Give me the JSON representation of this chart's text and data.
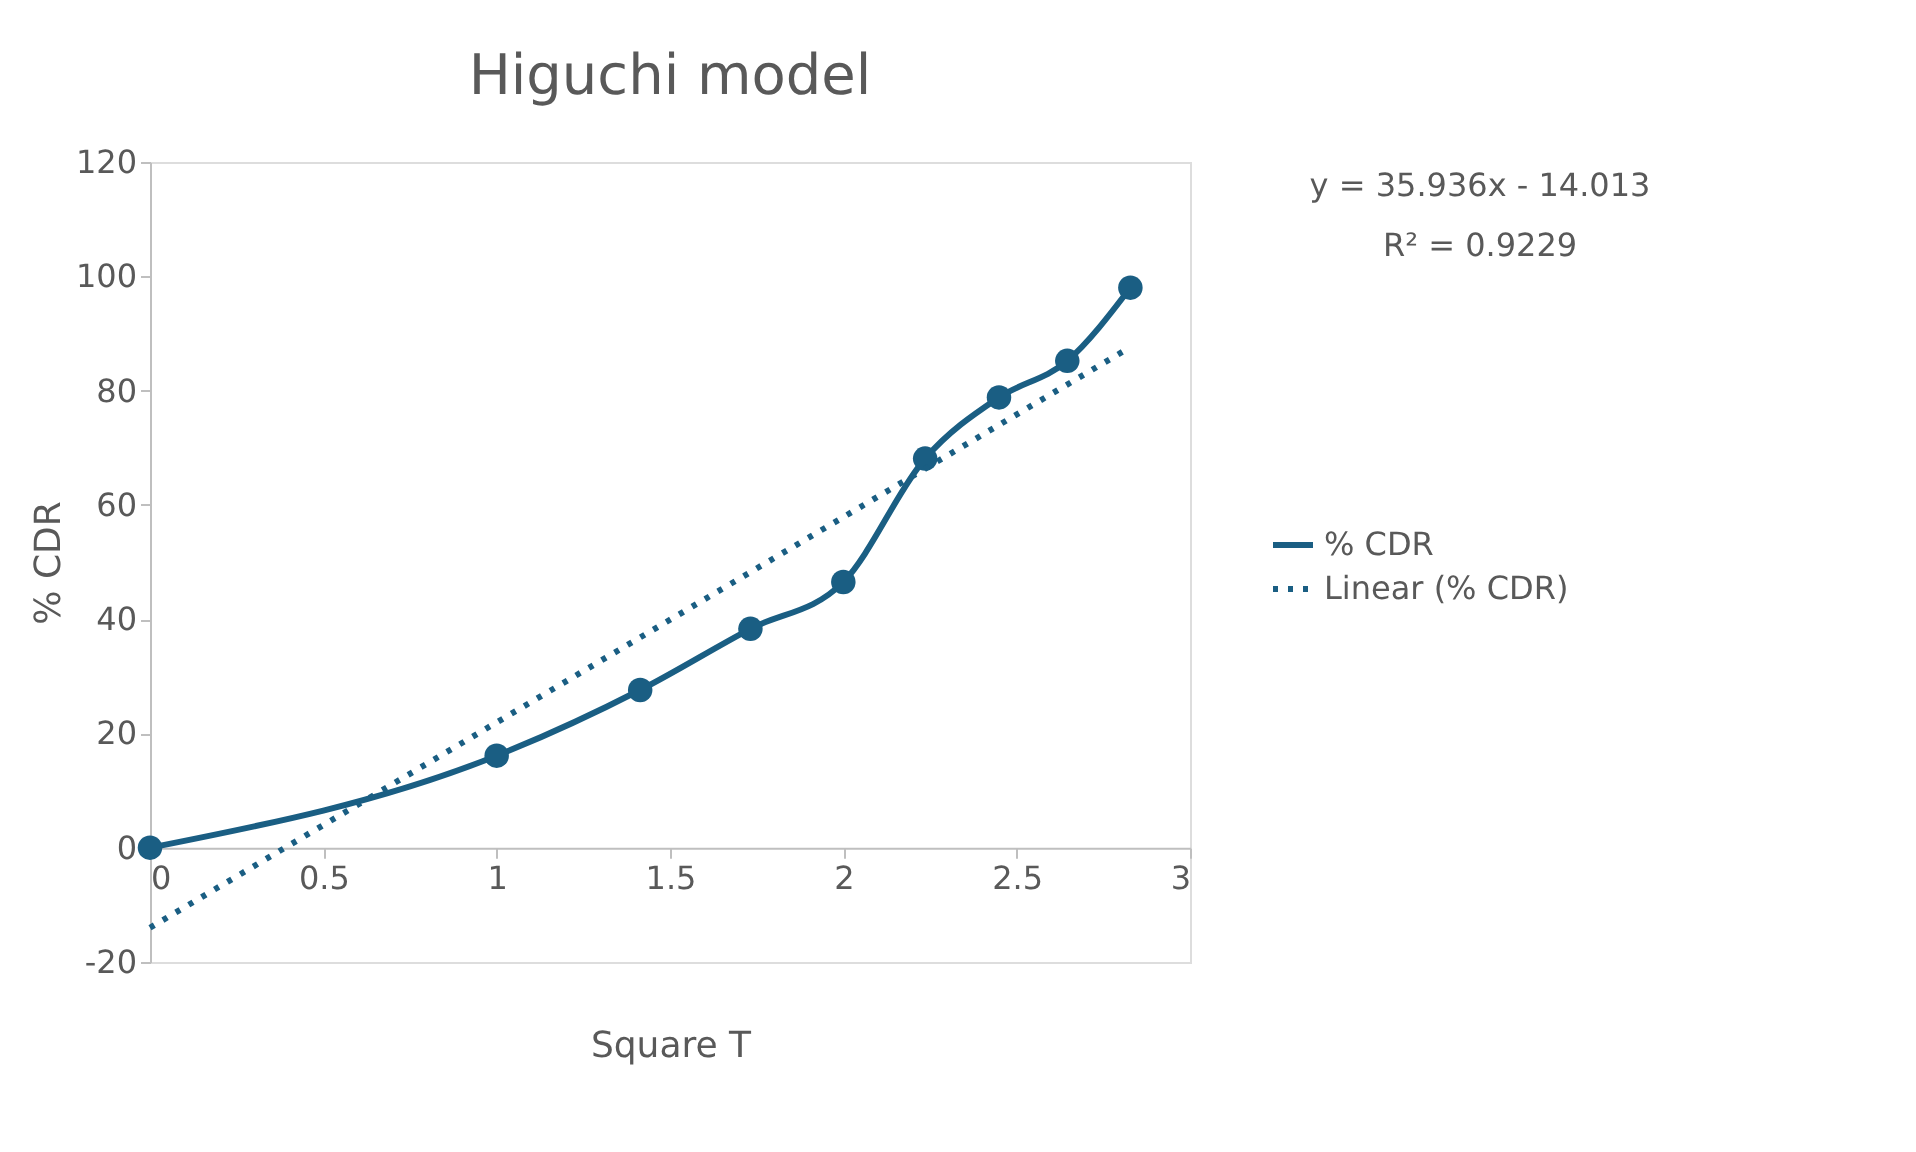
{
  "chart_data": {
    "type": "line",
    "title": "Higuchi model",
    "xlabel": "Square T",
    "ylabel": "% CDR",
    "x": [
      0,
      1,
      1.414,
      1.732,
      2,
      2.236,
      2.449,
      2.646,
      2.828
    ],
    "series": [
      {
        "name": "% CDR",
        "color": "#1a5e83",
        "marker": "circle",
        "line_style": "solid",
        "values": [
          0,
          16.1,
          27.6,
          38.3,
          46.5,
          68.1,
          78.8,
          85.2,
          98.0
        ]
      },
      {
        "name": "Linear (% CDR)",
        "color": "#1a5e83",
        "marker": "none",
        "line_style": "dotted",
        "x": [
          0,
          2.828
        ],
        "values": [
          -14.0,
          87.6
        ]
      }
    ],
    "xlim": [
      0,
      3
    ],
    "xticks": [
      0,
      0.5,
      1,
      1.5,
      2,
      2.5,
      3
    ],
    "ylim": [
      -20,
      120
    ],
    "yticks": [
      -20,
      0,
      20,
      40,
      60,
      80,
      100,
      120
    ],
    "annotations": [
      "y = 35.936x - 14.013",
      "R² = 0.9229"
    ],
    "grid": false,
    "legend": "right"
  }
}
